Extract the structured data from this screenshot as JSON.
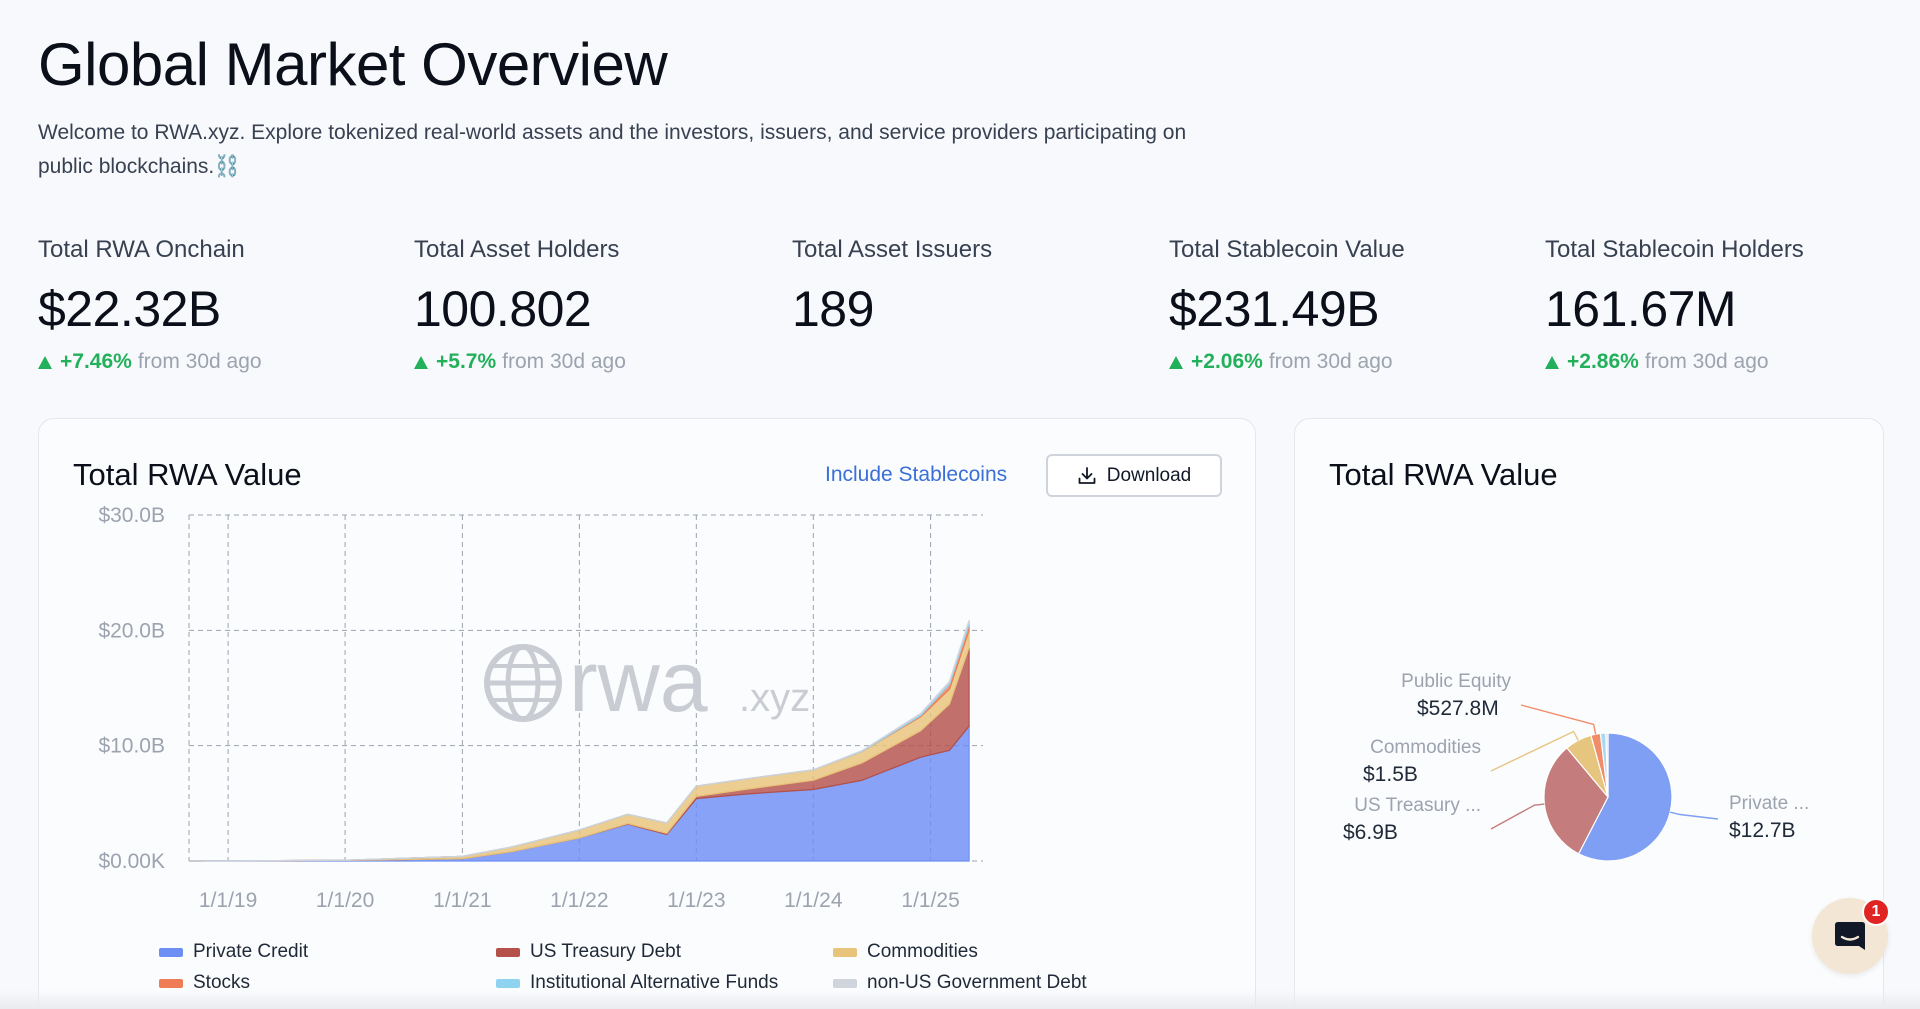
{
  "header": {
    "title": "Global Market Overview",
    "intro_line1": "Welcome to RWA.xyz. Explore tokenized real-world assets and the investors, issuers, and service providers participating on",
    "intro_line2": "public blockchains.⛓️"
  },
  "stats": [
    {
      "label": "Total RWA Onchain",
      "value": "$22.32B",
      "change": "+7.46%",
      "suffix": "from 30d ago"
    },
    {
      "label": "Total Asset Holders",
      "value": "100.802",
      "change": "+5.7%",
      "suffix": "from 30d ago"
    },
    {
      "label": "Total Asset Issuers",
      "value": "189",
      "change": null,
      "suffix": null
    },
    {
      "label": "Total Stablecoin Value",
      "value": "$231.49B",
      "change": "+2.06%",
      "suffix": "from 30d ago"
    },
    {
      "label": "Total Stablecoin Holders",
      "value": "161.67M",
      "change": "+2.86%",
      "suffix": "from 30d ago"
    }
  ],
  "main_card": {
    "title": "Total RWA Value",
    "include_label": "Include Stablecoins",
    "download_label": "Download",
    "watermark_main": "rwa",
    "watermark_suffix": ".xyz"
  },
  "pie_card": {
    "title": "Total RWA Value"
  },
  "chart_data": [
    {
      "type": "area",
      "stacked": true,
      "title": "Total RWA Value",
      "x_ticks": [
        "1/1/19",
        "1/1/20",
        "1/1/21",
        "1/1/22",
        "1/1/23",
        "1/1/24",
        "1/1/25"
      ],
      "y_ticks": [
        "$0.00K",
        "$10.0B",
        "$20.0B",
        "$30.0B"
      ],
      "ylim": [
        0,
        30
      ],
      "x": [
        "2018-09",
        "2019-01",
        "2020-01",
        "2021-01",
        "2021-06",
        "2022-01",
        "2022-06",
        "2022-10",
        "2023-01",
        "2023-06",
        "2024-01",
        "2024-06",
        "2024-12",
        "2025-03",
        "2025-05"
      ],
      "series": [
        {
          "name": "Private Credit",
          "color": "#6d8ef5",
          "values": [
            0.0,
            0.02,
            0.05,
            0.2,
            0.8,
            2.0,
            3.2,
            2.3,
            5.4,
            5.8,
            6.2,
            7.0,
            9.0,
            9.6,
            11.7
          ]
        },
        {
          "name": "US Treasury Debt",
          "color": "#b5504a",
          "values": [
            0.0,
            0.0,
            0.0,
            0.0,
            0.0,
            0.0,
            0.05,
            0.1,
            0.2,
            0.4,
            0.8,
            1.5,
            2.3,
            4.0,
            6.8
          ]
        },
        {
          "name": "Commodities",
          "color": "#e8c37a",
          "values": [
            0.0,
            0.0,
            0.02,
            0.2,
            0.4,
            0.7,
            0.8,
            0.9,
            0.9,
            0.9,
            0.9,
            1.0,
            1.2,
            1.3,
            1.5
          ]
        },
        {
          "name": "Stocks",
          "color": "#f07c55",
          "values": [
            0.0,
            0.0,
            0.0,
            0.0,
            0.0,
            0.0,
            0.0,
            0.0,
            0.0,
            0.0,
            0.0,
            0.0,
            0.1,
            0.4,
            0.5
          ]
        },
        {
          "name": "Institutional Alternative Funds",
          "color": "#8fd3f0",
          "values": [
            0.0,
            0.0,
            0.0,
            0.0,
            0.0,
            0.0,
            0.0,
            0.0,
            0.0,
            0.0,
            0.0,
            0.05,
            0.15,
            0.2,
            0.3
          ]
        },
        {
          "name": "non-US Government Debt",
          "color": "#cfd4dd",
          "values": [
            0.0,
            0.0,
            0.0,
            0.0,
            0.0,
            0.0,
            0.0,
            0.0,
            0.0,
            0.0,
            0.0,
            0.02,
            0.05,
            0.08,
            0.1
          ]
        }
      ],
      "legend": "bottom"
    },
    {
      "type": "pie",
      "title": "Total RWA Value",
      "slices": [
        {
          "label": "Private ...",
          "value_label": "$12.7B",
          "value": 12.7,
          "color": "#7f9ff5",
          "side": "right"
        },
        {
          "label": "US Treasury ...",
          "value_label": "$6.9B",
          "value": 6.9,
          "color": "#c47c7c",
          "side": "left"
        },
        {
          "label": "Commodities",
          "value_label": "$1.5B",
          "value": 1.5,
          "color": "#e6c57f",
          "side": "left"
        },
        {
          "label": "Public Equity",
          "value_label": "$527.8M",
          "value": 0.5278,
          "color": "#f08c6a",
          "side": "left"
        },
        {
          "label": "",
          "value_label": "",
          "value": 0.3,
          "color": "#a9d8f0",
          "side": "none"
        },
        {
          "label": "",
          "value_label": "",
          "value": 0.12,
          "color": "#d6dbe3",
          "side": "none"
        }
      ]
    }
  ],
  "icons": {
    "download": "download-icon",
    "globe": "globe-icon",
    "chat": "chat-icon"
  },
  "chat": {
    "badge": "1"
  }
}
